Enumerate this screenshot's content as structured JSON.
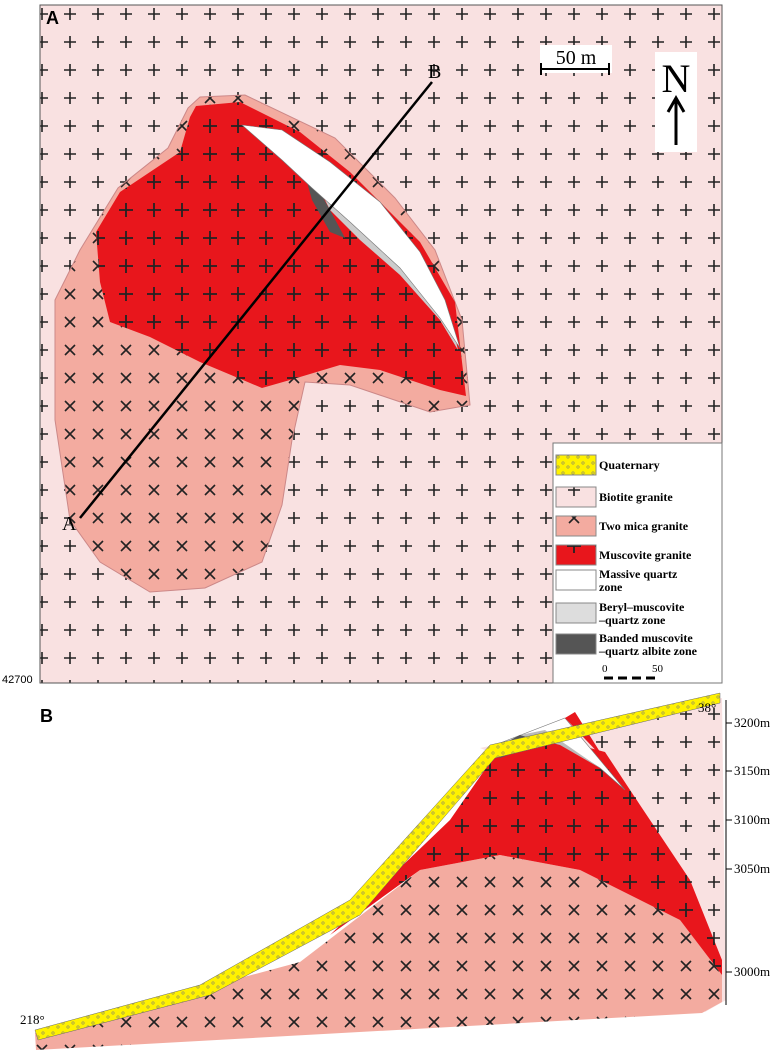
{
  "panel_a": {
    "label": "A",
    "scale": "50 m",
    "north": "N",
    "profile_end": "B",
    "profile_start": "A",
    "coordinate": "42700",
    "legend": [
      {
        "lines": [
          "Quaternary"
        ]
      },
      {
        "lines": [
          "Biotite granite"
        ]
      },
      {
        "lines": [
          "Two mica granite"
        ]
      },
      {
        "lines": [
          "Muscovite granite"
        ]
      },
      {
        "lines": [
          "Massive quartz",
          "zone"
        ]
      },
      {
        "lines": [
          "Beryl–muscovite",
          "–quartz zone"
        ]
      },
      {
        "lines": [
          "Banded muscovite",
          "–quartz albite zone"
        ]
      }
    ],
    "legend_scale": [
      "0",
      "50"
    ]
  },
  "panel_b": {
    "label": "B",
    "azimuth_right": "38°",
    "azimuth_left": "218°",
    "elevations": [
      "3200m",
      "3150m",
      "3100m",
      "3050m",
      "3000m"
    ]
  }
}
